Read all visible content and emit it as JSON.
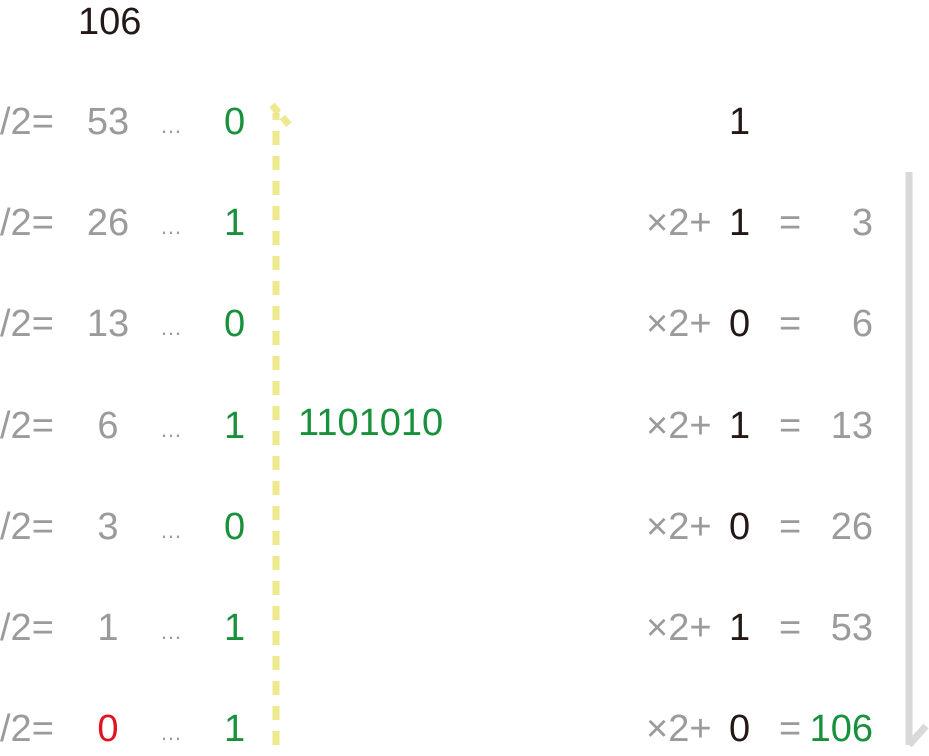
{
  "colors": {
    "black": "#231815",
    "gray": "#9b9b9b",
    "green": "#18913c",
    "red": "#e0141e",
    "yellow_arrow": "#ede98c",
    "gray_arrow": "#d9d9d9"
  },
  "division": {
    "start": "106",
    "op": "/2=",
    "ellipsis": "…",
    "rows": [
      {
        "quotient": "53",
        "remainder": "0",
        "quotient_color": "gray"
      },
      {
        "quotient": "26",
        "remainder": "1",
        "quotient_color": "gray"
      },
      {
        "quotient": "13",
        "remainder": "0",
        "quotient_color": "gray"
      },
      {
        "quotient": "6",
        "remainder": "1",
        "quotient_color": "gray"
      },
      {
        "quotient": "3",
        "remainder": "0",
        "quotient_color": "gray"
      },
      {
        "quotient": "1",
        "remainder": "1",
        "quotient_color": "gray"
      },
      {
        "quotient": "0",
        "remainder": "1",
        "quotient_color": "red"
      }
    ],
    "binary_result": "1101010"
  },
  "reconstruction": {
    "start": "1",
    "op": "×2+",
    "eq": "=",
    "rows": [
      {
        "bit": "1",
        "result": "3",
        "result_color": "gray"
      },
      {
        "bit": "0",
        "result": "6",
        "result_color": "gray"
      },
      {
        "bit": "1",
        "result": "13",
        "result_color": "gray"
      },
      {
        "bit": "0",
        "result": "26",
        "result_color": "gray"
      },
      {
        "bit": "1",
        "result": "53",
        "result_color": "gray"
      },
      {
        "bit": "0",
        "result": "106",
        "result_color": "green"
      }
    ]
  }
}
